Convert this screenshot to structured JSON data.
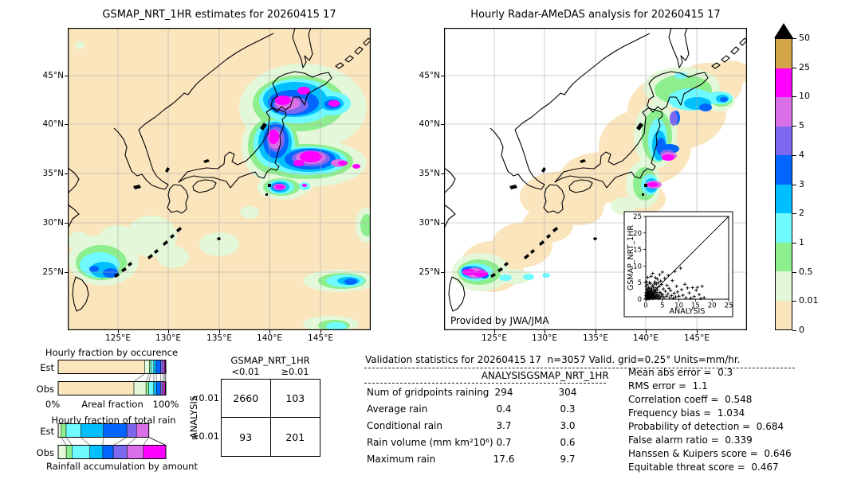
{
  "palette": {
    "wheat": "#FAE5BD",
    "palegreen": "#E3F8D8",
    "green": "#8CEE8C",
    "cyan": "#6FFAFF",
    "skyblue": "#00BFFF",
    "blue": "#0066FF",
    "purple": "#7B68EE",
    "orchid": "#DA70E8",
    "magenta": "#FF00FF",
    "gold": "#D2A548",
    "over": "#000000"
  },
  "colorbar": {
    "labels": [
      "0",
      "0.01",
      "0.5",
      "1",
      "2",
      "3",
      "4",
      "5",
      "10",
      "25",
      "50"
    ],
    "order": [
      "wheat",
      "palegreen",
      "green",
      "cyan",
      "skyblue",
      "blue",
      "purple",
      "orchid",
      "magenta",
      "gold"
    ]
  },
  "chart_data": [
    {
      "id": "map_gsmap",
      "type": "heatmap",
      "title": "GSMAP_NRT_1HR estimates for 20260415 17",
      "xticks": [
        "125°E",
        "130°E",
        "135°E",
        "140°E",
        "145°E"
      ],
      "yticks": [
        "45°N",
        "40°N",
        "35°N",
        "30°N",
        "25°N"
      ],
      "units": "mm/hr",
      "levels": [
        0,
        0.01,
        0.5,
        1,
        2,
        3,
        4,
        5,
        10,
        25,
        50
      ]
    },
    {
      "id": "map_radar",
      "type": "heatmap",
      "title": "Hourly Radar-AMeDAS analysis for 20260415 17",
      "credit": "Provided by JWA/JMA",
      "xticks": [
        "125°E",
        "130°E",
        "135°E",
        "140°E",
        "145°E"
      ],
      "yticks": [
        "45°N",
        "40°N",
        "35°N",
        "30°N",
        "25°N"
      ],
      "units": "mm/hr",
      "levels": [
        0,
        0.01,
        0.5,
        1,
        2,
        3,
        4,
        5,
        10,
        25,
        50
      ]
    },
    {
      "id": "inset_scatter",
      "type": "scatter",
      "xlabel": "ANALYSIS",
      "ylabel": "GSMAP_NRT_1HR",
      "xlim": [
        0,
        25
      ],
      "ylim": [
        0,
        25
      ],
      "ticks": [
        0,
        5,
        10,
        15,
        20,
        25
      ],
      "identity_line": true,
      "points": [
        [
          0.1,
          0.1
        ],
        [
          0.1,
          0.5
        ],
        [
          0.1,
          1.1
        ],
        [
          0.1,
          2.0
        ],
        [
          0.1,
          3.9
        ],
        [
          0.2,
          0.2
        ],
        [
          0.2,
          0.9
        ],
        [
          0.2,
          1.6
        ],
        [
          0.2,
          5.3
        ],
        [
          0.3,
          0.4
        ],
        [
          0.3,
          1.3
        ],
        [
          0.3,
          2.9
        ],
        [
          0.4,
          0.1
        ],
        [
          0.4,
          0.8
        ],
        [
          0.4,
          4.4
        ],
        [
          0.5,
          0.3
        ],
        [
          0.5,
          1.2
        ],
        [
          0.5,
          2.3
        ],
        [
          0.6,
          0.6
        ],
        [
          0.6,
          1.8
        ],
        [
          0.6,
          6.6
        ],
        [
          0.7,
          0.2
        ],
        [
          0.7,
          1.0
        ],
        [
          0.7,
          3.1
        ],
        [
          0.8,
          0.5
        ],
        [
          0.8,
          1.6
        ],
        [
          0.8,
          2.4
        ],
        [
          0.9,
          0.9
        ],
        [
          0.9,
          3.6
        ],
        [
          1.0,
          0.1
        ],
        [
          1.0,
          1.4
        ],
        [
          1.0,
          2.1
        ],
        [
          1.1,
          0.6
        ],
        [
          1.1,
          5.0
        ],
        [
          1.2,
          1.0
        ],
        [
          1.2,
          2.7
        ],
        [
          1.3,
          0.3
        ],
        [
          1.3,
          1.9
        ],
        [
          1.4,
          0.8
        ],
        [
          1.4,
          4.8
        ],
        [
          1.5,
          1.5
        ],
        [
          1.5,
          3.3
        ],
        [
          1.6,
          0.4
        ],
        [
          1.6,
          2.4
        ],
        [
          1.6,
          6.9
        ],
        [
          1.7,
          1.1
        ],
        [
          1.8,
          0.7
        ],
        [
          1.8,
          3.0
        ],
        [
          1.9,
          1.7
        ],
        [
          1.9,
          2.3
        ],
        [
          2.0,
          0.2
        ],
        [
          2.0,
          4.1
        ],
        [
          2.1,
          1.2
        ],
        [
          2.1,
          7.8
        ],
        [
          2.2,
          2.0
        ],
        [
          2.3,
          0.6
        ],
        [
          2.3,
          3.6
        ],
        [
          2.4,
          1.5
        ],
        [
          2.5,
          0.9
        ],
        [
          2.5,
          2.8
        ],
        [
          2.6,
          1.0
        ],
        [
          2.6,
          4.6
        ],
        [
          2.7,
          2.2
        ],
        [
          2.8,
          0.3
        ],
        [
          2.8,
          5.2
        ],
        [
          2.9,
          1.6
        ],
        [
          2.9,
          6.5
        ],
        [
          3.0,
          0.7
        ],
        [
          3.0,
          2.5
        ],
        [
          3.1,
          3.4
        ],
        [
          3.2,
          1.1
        ],
        [
          3.2,
          4.6
        ],
        [
          3.3,
          0.4
        ],
        [
          3.4,
          2.0
        ],
        [
          3.5,
          2.9
        ],
        [
          3.5,
          6.1
        ],
        [
          3.6,
          0.8
        ],
        [
          3.7,
          1.4
        ],
        [
          3.8,
          5.0
        ],
        [
          3.9,
          0.2
        ],
        [
          4.0,
          3.8
        ],
        [
          4.1,
          1.0
        ],
        [
          4.2,
          7.4
        ],
        [
          4.3,
          2.1
        ],
        [
          4.4,
          0.5
        ],
        [
          4.5,
          5.5
        ],
        [
          4.6,
          1.7
        ],
        [
          4.8,
          4.4
        ],
        [
          4.9,
          0.9
        ],
        [
          5.0,
          8.2
        ],
        [
          5.1,
          1.4
        ],
        [
          5.3,
          3.1
        ],
        [
          5.5,
          0.4
        ],
        [
          5.7,
          6.3
        ],
        [
          5.9,
          2.4
        ],
        [
          6.2,
          0.9
        ],
        [
          6.4,
          4.2
        ],
        [
          6.7,
          1.6
        ],
        [
          6.8,
          7.2
        ],
        [
          7.0,
          3.3
        ],
        [
          7.2,
          0.5
        ],
        [
          7.5,
          2.6
        ],
        [
          7.8,
          1.1
        ],
        [
          8.0,
          5.6
        ],
        [
          8.3,
          0.3
        ],
        [
          8.6,
          1.8
        ],
        [
          8.8,
          8.4
        ],
        [
          9.0,
          0.7
        ],
        [
          9.3,
          3.9
        ],
        [
          9.6,
          2.2
        ],
        [
          10.0,
          0.9
        ],
        [
          10.5,
          9.4
        ],
        [
          10.8,
          2.9
        ],
        [
          11.2,
          1.2
        ],
        [
          11.8,
          4.5
        ],
        [
          12.1,
          0.4
        ],
        [
          12.6,
          3.4
        ],
        [
          13.1,
          1.9
        ],
        [
          13.6,
          0.3
        ],
        [
          14.1,
          3.5
        ],
        [
          14.6,
          0.8
        ],
        [
          15.2,
          2.7
        ],
        [
          15.6,
          3.6
        ],
        [
          16.1,
          1.4
        ],
        [
          16.6,
          0.2
        ],
        [
          17.0,
          3.9
        ],
        [
          17.6,
          0.5
        ]
      ]
    },
    {
      "id": "occurrence_fraction",
      "type": "bar",
      "title": "Hourly fraction by occurence",
      "categories": [
        "Est",
        "Obs"
      ],
      "axis": {
        "left": "0%",
        "center": "Areal fraction",
        "right": "100%"
      },
      "series": {
        "Est": [
          [
            "wheat",
            80.3
          ],
          [
            "palegreen",
            4.4
          ],
          [
            "green",
            1.4
          ],
          [
            "cyan",
            2.7
          ],
          [
            "skyblue",
            2.3
          ],
          [
            "blue",
            4.2
          ],
          [
            "purple",
            2.2
          ],
          [
            "orchid",
            1.2
          ],
          [
            "magenta",
            0.8
          ],
          [
            "gold",
            0.5
          ]
        ],
        "Obs": [
          [
            "wheat",
            70.4
          ],
          [
            "palegreen",
            11.2
          ],
          [
            "green",
            2.6
          ],
          [
            "cyan",
            4.6
          ],
          [
            "skyblue",
            2.6
          ],
          [
            "blue",
            3.6
          ],
          [
            "purple",
            2.0
          ],
          [
            "orchid",
            1.4
          ],
          [
            "magenta",
            1.0
          ],
          [
            "gold",
            0.6
          ]
        ]
      }
    },
    {
      "id": "total_rain_fraction",
      "type": "bar",
      "title": "Hourly fraction of total rain",
      "caption": "Rainfall accumulation by amount",
      "categories": [
        "Est",
        "Obs"
      ],
      "series": {
        "Est": [
          [
            "palegreen",
            2.8
          ],
          [
            "green",
            4.6
          ],
          [
            "cyan",
            13.6
          ],
          [
            "skyblue",
            21.0
          ],
          [
            "blue",
            21.8
          ],
          [
            "purple",
            9.0
          ],
          [
            "orchid",
            11.4
          ]
        ],
        "Obs": [
          [
            "palegreen",
            7.5
          ],
          [
            "green",
            5.3
          ],
          [
            "cyan",
            16.6
          ],
          [
            "skyblue",
            12.0
          ],
          [
            "blue",
            9.8
          ],
          [
            "purple",
            12.8
          ],
          [
            "orchid",
            15.1
          ],
          [
            "magenta",
            20.9
          ]
        ]
      }
    },
    {
      "id": "contingency_table",
      "type": "table",
      "col_title": "GSMAP_NRT_1HR",
      "row_title": "ANALYSIS",
      "col_labels": [
        "<0.01",
        "≥0.01"
      ],
      "row_labels": [
        "<0.01",
        "≥0.01"
      ],
      "values": [
        [
          2660,
          103
        ],
        [
          93,
          201
        ]
      ]
    },
    {
      "id": "validation_stats",
      "type": "table",
      "title": "Validation statistics for 20260415 17  n=3057 Valid. grid=0.25° Units=mm/hr.",
      "columns": [
        "ANALYSIS",
        "GSMAP_NRT_1HR"
      ],
      "rows": [
        [
          "Num of gridpoints raining",
          "294",
          "304"
        ],
        [
          "Average rain",
          "0.4",
          "0.3"
        ],
        [
          "Conditional rain",
          "3.7",
          "3.0"
        ],
        [
          "Rain volume (mm km²10⁶)",
          "0.7",
          "0.6"
        ],
        [
          "Maximum rain",
          "17.6",
          "9.7"
        ]
      ]
    },
    {
      "id": "skill_scores",
      "type": "table",
      "rows": [
        [
          "Mean abs error",
          "0.3"
        ],
        [
          "RMS error",
          "1.1"
        ],
        [
          "Correlation coeff",
          "0.548"
        ],
        [
          "Frequency bias",
          "1.034"
        ],
        [
          "Probability of detection",
          "0.684"
        ],
        [
          "False alarm ratio",
          "0.339"
        ],
        [
          "Hanssen & Kuipers score",
          "0.646"
        ],
        [
          "Equitable threat score",
          "0.467"
        ]
      ]
    }
  ]
}
